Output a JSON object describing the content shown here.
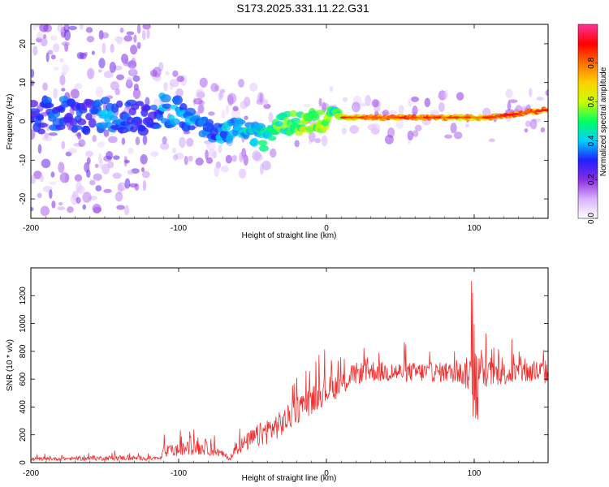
{
  "title": "S173.2025.331.11.22.G31",
  "chart_data": [
    {
      "type": "heatmap",
      "title": "S173.2025.331.11.22.G31",
      "xlabel": "Height of straight line (km)",
      "ylabel": "Frequency (Hz)",
      "xlim": [
        -200,
        150
      ],
      "ylim": [
        -25,
        25
      ],
      "xticks": [
        "-200",
        "-100",
        "0",
        "100"
      ],
      "yticks": [
        "-20",
        "-10",
        "0",
        "10",
        "20"
      ],
      "colorbar": {
        "label": "Normalized spectral amplitude",
        "range": [
          0.0,
          1.0
        ],
        "ticks": [
          "0.0",
          "0.2",
          "0.4",
          "0.6",
          "0.8"
        ],
        "colormap": [
          "#ffffff",
          "#d9b3ff",
          "#8a2be2",
          "#2020ff",
          "#00d0ff",
          "#00ff60",
          "#c8ff00",
          "#ffd000",
          "#ff7000",
          "#ff0000",
          "#ff3399"
        ]
      },
      "ridge": {
        "x": [
          -200,
          -180,
          -160,
          -150,
          -140,
          -120,
          -110,
          -100,
          -90,
          -80,
          -70,
          -60,
          -50,
          -40,
          -35,
          -30,
          -20,
          -10,
          0,
          3,
          5,
          10,
          20,
          40,
          60,
          80,
          90,
          100,
          110,
          120,
          130,
          150
        ],
        "freq": [
          1,
          2,
          1,
          2,
          1,
          1,
          3,
          2,
          0,
          -2,
          -3,
          -1,
          -3,
          -5,
          -3,
          -1,
          0,
          0,
          0,
          3,
          3,
          1,
          1,
          1,
          1,
          1,
          1,
          1,
          1,
          1.5,
          2,
          3
        ],
        "amplitude": [
          0.3,
          0.35,
          0.3,
          0.4,
          0.35,
          0.3,
          0.4,
          0.4,
          0.4,
          0.35,
          0.4,
          0.45,
          0.45,
          0.5,
          0.55,
          0.55,
          0.6,
          0.65,
          0.6,
          0.55,
          0.5,
          0.7,
          0.8,
          0.85,
          0.85,
          0.85,
          0.8,
          0.75,
          0.8,
          0.85,
          0.85,
          0.85
        ]
      }
    },
    {
      "type": "line",
      "xlabel": "Height of straight line (km)",
      "ylabel": "SNR (10 * v/v)",
      "xlim": [
        -200,
        150
      ],
      "ylim": [
        0,
        1400
      ],
      "xticks": [
        "-200",
        "-100",
        "0",
        "100"
      ],
      "yticks": [
        "0",
        "200",
        "400",
        "600",
        "800",
        "1000",
        "1200"
      ],
      "series": [
        {
          "name": "SNR",
          "color": "#f03030",
          "x": [
            -200,
            -180,
            -160,
            -140,
            -120,
            -112,
            -110,
            -100,
            -90,
            -80,
            -70,
            -65,
            -60,
            -50,
            -40,
            -30,
            -25,
            -20,
            -10,
            0,
            10,
            20,
            30,
            40,
            50,
            60,
            70,
            80,
            90,
            95,
            100,
            105,
            110,
            120,
            130,
            140,
            150
          ],
          "base": [
            25,
            28,
            30,
            35,
            30,
            30,
            80,
            90,
            110,
            100,
            60,
            25,
            110,
            170,
            230,
            280,
            330,
            380,
            450,
            520,
            560,
            640,
            660,
            650,
            650,
            650,
            650,
            650,
            640,
            640,
            620,
            650,
            640,
            640,
            650,
            650,
            650
          ],
          "noise": [
            20,
            20,
            25,
            30,
            25,
            20,
            70,
            80,
            90,
            80,
            40,
            20,
            80,
            130,
            160,
            160,
            160,
            170,
            170,
            160,
            150,
            130,
            130,
            120,
            120,
            120,
            120,
            120,
            120,
            200,
            320,
            200,
            150,
            140,
            140,
            150,
            150
          ]
        }
      ]
    }
  ]
}
